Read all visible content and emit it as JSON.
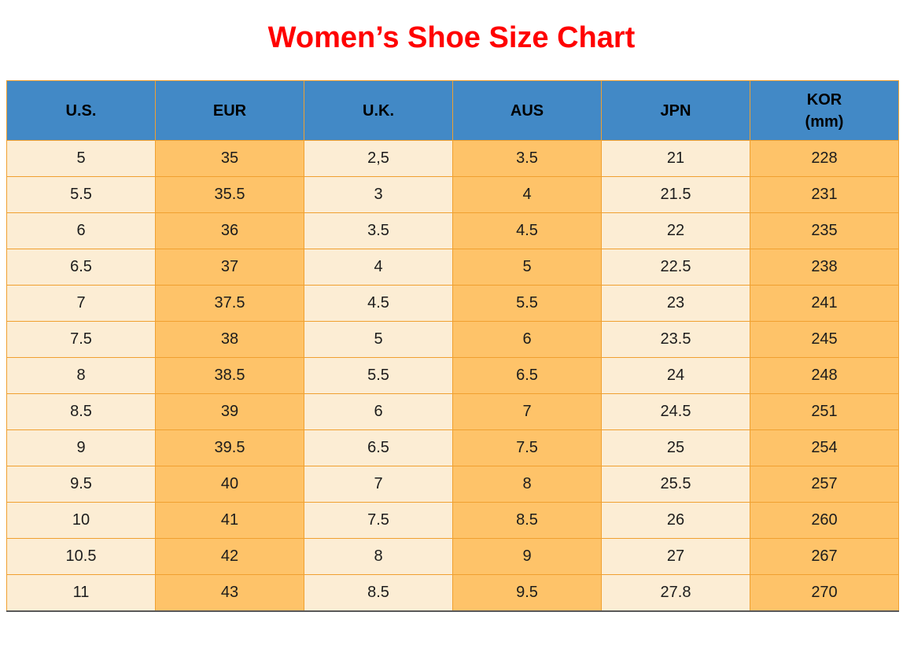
{
  "theme": {
    "page_bg": "#FFFFFF",
    "title_color": "#FF0000",
    "header_bg": "#4289C6",
    "header_text": "#000000",
    "col_cream": "#FCEDD4",
    "col_orange": "#FEC369",
    "border_orange": "#F0A030",
    "bottom_border": "#595959",
    "cell_text": "#1C1C1C"
  },
  "title": {
    "text": "Women’s Shoe Size Chart"
  },
  "table": {
    "columns": [
      {
        "label": "U.S."
      },
      {
        "label": "EUR"
      },
      {
        "label": "U.K."
      },
      {
        "label": "AUS"
      },
      {
        "label": "JPN"
      },
      {
        "label": "KOR",
        "sublabel": "(mm)"
      }
    ]
  },
  "chart_data": {
    "type": "table",
    "title": "Women’s Shoe Size Chart",
    "columns": [
      "U.S.",
      "EUR",
      "U.K.",
      "AUS",
      "JPN",
      "KOR (mm)"
    ],
    "rows": [
      [
        "5",
        "35",
        "2,5",
        "3.5",
        "21",
        "228"
      ],
      [
        "5.5",
        "35.5",
        "3",
        "4",
        "21.5",
        "231"
      ],
      [
        "6",
        "36",
        "3.5",
        "4.5",
        "22",
        "235"
      ],
      [
        "6.5",
        "37",
        "4",
        "5",
        "22.5",
        "238"
      ],
      [
        "7",
        "37.5",
        "4.5",
        "5.5",
        "23",
        "241"
      ],
      [
        "7.5",
        "38",
        "5",
        "6",
        "23.5",
        "245"
      ],
      [
        "8",
        "38.5",
        "5.5",
        "6.5",
        "24",
        "248"
      ],
      [
        "8.5",
        "39",
        "6",
        "7",
        "24.5",
        "251"
      ],
      [
        "9",
        "39.5",
        "6.5",
        "7.5",
        "25",
        "254"
      ],
      [
        "9.5",
        "40",
        "7",
        "8",
        "25.5",
        "257"
      ],
      [
        "10",
        "41",
        "7.5",
        "8.5",
        "26",
        "260"
      ],
      [
        "10.5",
        "42",
        "8",
        "9",
        "27",
        "267"
      ],
      [
        "11",
        "43",
        "8.5",
        "9.5",
        "27.8",
        "270"
      ]
    ]
  }
}
